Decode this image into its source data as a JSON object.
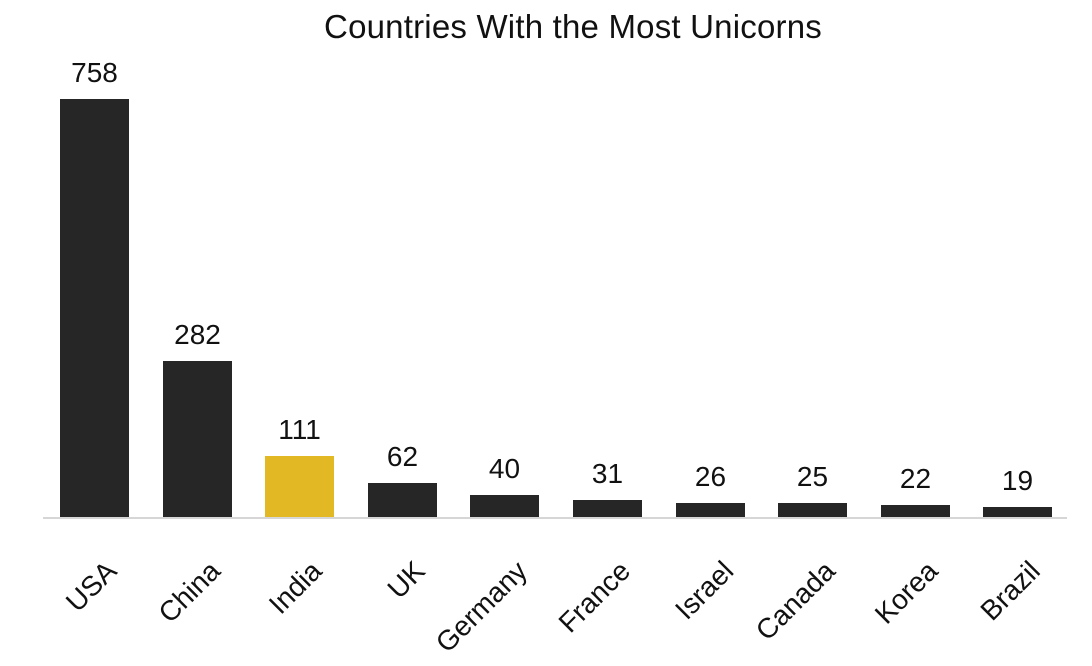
{
  "chart_data": {
    "type": "bar",
    "title": "Countries With the Most Unicorns",
    "xlabel": "",
    "ylabel": "",
    "categories": [
      "USA",
      "China",
      "India",
      "UK",
      "Germany",
      "France",
      "Israel",
      "Canada",
      "Korea",
      "Brazil"
    ],
    "values": [
      758,
      282,
      111,
      62,
      40,
      31,
      26,
      25,
      22,
      19
    ],
    "data_labels": [
      "758",
      "282",
      "111",
      "62",
      "40",
      "31",
      "26",
      "25",
      "22",
      "19"
    ],
    "highlighted_category": "India",
    "colors": {
      "default_bar": "#262626",
      "highlight_bar": "#e2b824",
      "axis_line": "#d6d6d6"
    },
    "ylim": [
      0,
      800
    ],
    "grid": false,
    "legend": null,
    "x_tick_rotation": -45
  }
}
